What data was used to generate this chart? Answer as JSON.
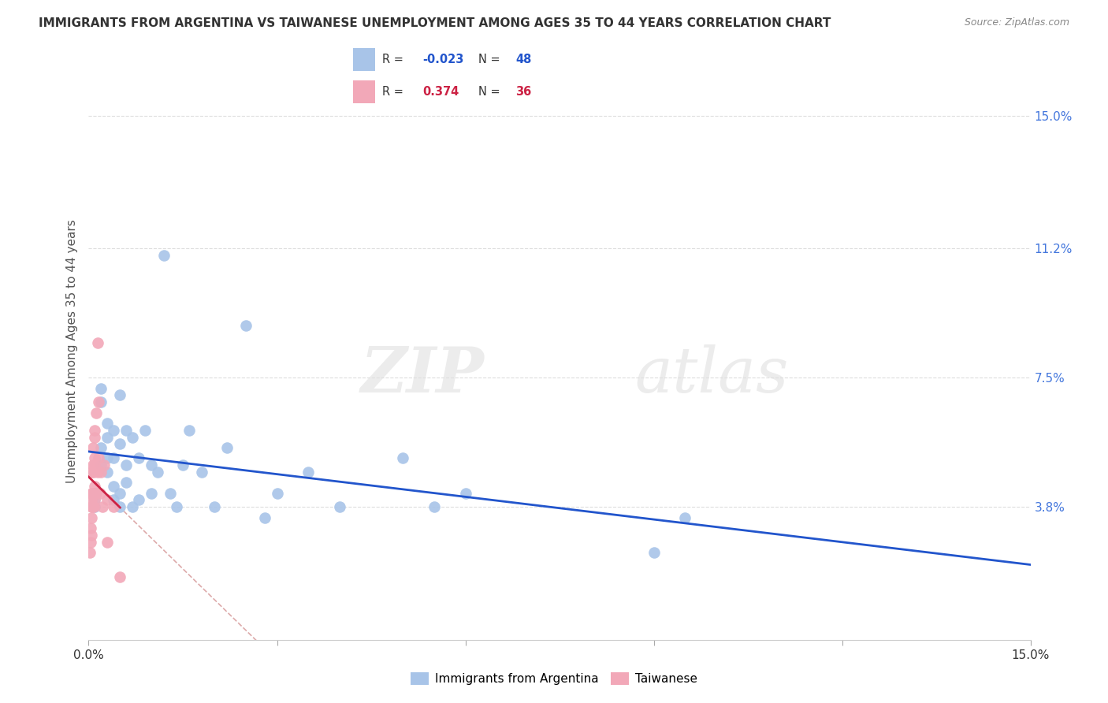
{
  "title": "IMMIGRANTS FROM ARGENTINA VS TAIWANESE UNEMPLOYMENT AMONG AGES 35 TO 44 YEARS CORRELATION CHART",
  "source": "Source: ZipAtlas.com",
  "ylabel": "Unemployment Among Ages 35 to 44 years",
  "xlim": [
    0.0,
    0.15
  ],
  "ylim": [
    0.0,
    0.165
  ],
  "y_tick_labels_right": [
    "3.8%",
    "7.5%",
    "11.2%",
    "15.0%"
  ],
  "y_ticks_right": [
    0.038,
    0.075,
    0.112,
    0.15
  ],
  "blue_R": -0.023,
  "blue_N": 48,
  "pink_R": 0.374,
  "pink_N": 36,
  "blue_color": "#a8c4e8",
  "pink_color": "#f2a8b8",
  "blue_line_color": "#2255cc",
  "pink_line_color": "#cc2244",
  "diag_line_color": "#ddaaaa",
  "grid_color": "#dddddd",
  "legend_label_blue": "Immigrants from Argentina",
  "legend_label_pink": "Taiwanese",
  "blue_x": [
    0.001,
    0.001,
    0.001,
    0.002,
    0.002,
    0.002,
    0.002,
    0.003,
    0.003,
    0.003,
    0.003,
    0.004,
    0.004,
    0.004,
    0.004,
    0.005,
    0.005,
    0.005,
    0.005,
    0.006,
    0.006,
    0.006,
    0.007,
    0.007,
    0.008,
    0.008,
    0.009,
    0.01,
    0.01,
    0.011,
    0.012,
    0.013,
    0.014,
    0.015,
    0.016,
    0.018,
    0.02,
    0.022,
    0.025,
    0.028,
    0.03,
    0.035,
    0.04,
    0.05,
    0.055,
    0.06,
    0.09,
    0.095
  ],
  "blue_y": [
    0.038,
    0.04,
    0.042,
    0.05,
    0.055,
    0.068,
    0.072,
    0.052,
    0.058,
    0.062,
    0.048,
    0.04,
    0.044,
    0.052,
    0.06,
    0.038,
    0.042,
    0.056,
    0.07,
    0.045,
    0.05,
    0.06,
    0.038,
    0.058,
    0.04,
    0.052,
    0.06,
    0.042,
    0.05,
    0.048,
    0.11,
    0.042,
    0.038,
    0.05,
    0.06,
    0.048,
    0.038,
    0.055,
    0.09,
    0.035,
    0.042,
    0.048,
    0.038,
    0.052,
    0.038,
    0.042,
    0.025,
    0.035
  ],
  "pink_x": [
    0.0002,
    0.0003,
    0.0003,
    0.0004,
    0.0004,
    0.0004,
    0.0005,
    0.0005,
    0.0005,
    0.0006,
    0.0006,
    0.0007,
    0.0007,
    0.0008,
    0.0008,
    0.0008,
    0.0009,
    0.0009,
    0.001,
    0.001,
    0.001,
    0.001,
    0.0012,
    0.0012,
    0.0014,
    0.0014,
    0.0016,
    0.0016,
    0.0018,
    0.002,
    0.0022,
    0.0025,
    0.003,
    0.003,
    0.004,
    0.005
  ],
  "pink_y": [
    0.025,
    0.028,
    0.032,
    0.03,
    0.038,
    0.042,
    0.035,
    0.04,
    0.048,
    0.038,
    0.042,
    0.05,
    0.055,
    0.038,
    0.042,
    0.048,
    0.052,
    0.058,
    0.04,
    0.044,
    0.05,
    0.06,
    0.042,
    0.065,
    0.048,
    0.085,
    0.052,
    0.068,
    0.042,
    0.048,
    0.038,
    0.05,
    0.04,
    0.028,
    0.038,
    0.018
  ]
}
